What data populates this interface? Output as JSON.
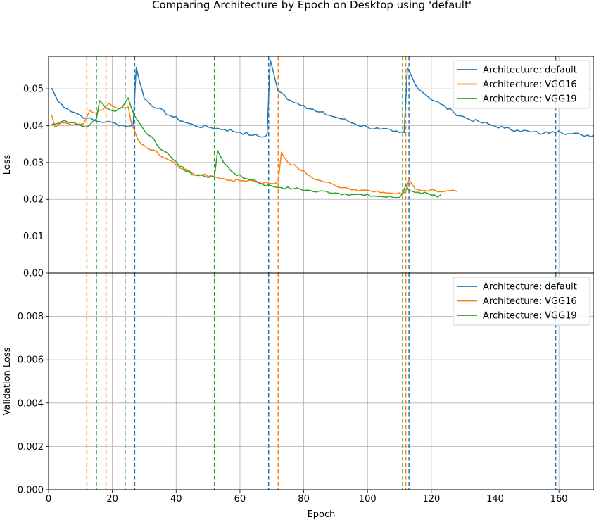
{
  "chart_data": [
    {
      "type": "line",
      "title": "Comparing Architecture by Epoch on Desktop using 'default'",
      "ylabel": "Loss",
      "xlim": [
        0,
        171
      ],
      "ylim": [
        0,
        0.0588
      ],
      "xticks": [
        0,
        20,
        40,
        60,
        80,
        100,
        120,
        140,
        160
      ],
      "yticks": [
        0.0,
        0.01,
        0.02,
        0.03,
        0.04,
        0.05
      ],
      "ytick_labels": [
        "0.00",
        "0.01",
        "0.02",
        "0.03",
        "0.04",
        "0.05"
      ],
      "grid": true,
      "legend": "top-right",
      "series": [
        {
          "name": "Architecture: default",
          "color": "#1f77b4",
          "anchors": [
            [
              1,
              0.0502
            ],
            [
              3,
              0.0465
            ],
            [
              6,
              0.0445
            ],
            [
              9,
              0.0432
            ],
            [
              12,
              0.042
            ],
            [
              15,
              0.0412
            ],
            [
              18,
              0.041
            ],
            [
              21,
              0.0406
            ],
            [
              24,
              0.0399
            ],
            [
              26.5,
              0.0399
            ],
            [
              27.5,
              0.0558
            ],
            [
              30,
              0.0473
            ],
            [
              34,
              0.0447
            ],
            [
              38,
              0.0428
            ],
            [
              42,
              0.0412
            ],
            [
              46,
              0.0399
            ],
            [
              50,
              0.0396
            ],
            [
              55,
              0.039
            ],
            [
              60,
              0.0382
            ],
            [
              64,
              0.0374
            ],
            [
              67,
              0.0369
            ],
            [
              68.5,
              0.0376
            ],
            [
              69.5,
              0.0578
            ],
            [
              72,
              0.0493
            ],
            [
              76,
              0.0468
            ],
            [
              80,
              0.0455
            ],
            [
              84,
              0.0438
            ],
            [
              88,
              0.0428
            ],
            [
              92,
              0.0418
            ],
            [
              96,
              0.0405
            ],
            [
              100,
              0.0396
            ],
            [
              104,
              0.039
            ],
            [
              108,
              0.0384
            ],
            [
              110,
              0.0381
            ],
            [
              111.5,
              0.0381
            ],
            [
              112.5,
              0.0557
            ],
            [
              115,
              0.0511
            ],
            [
              119,
              0.0478
            ],
            [
              123,
              0.0458
            ],
            [
              127,
              0.0436
            ],
            [
              131,
              0.042
            ],
            [
              135,
              0.041
            ],
            [
              139,
              0.0401
            ],
            [
              143,
              0.0393
            ],
            [
              147,
              0.0388
            ],
            [
              151,
              0.0383
            ],
            [
              155,
              0.0378
            ],
            [
              158,
              0.0384
            ],
            [
              160,
              0.0386
            ],
            [
              163,
              0.0378
            ],
            [
              167,
              0.0375
            ],
            [
              171,
              0.0374
            ]
          ],
          "noise": 0.0005
        },
        {
          "name": "Architecture: VGG16",
          "color": "#ff7f0e",
          "anchors": [
            [
              1,
              0.0428
            ],
            [
              2,
              0.0396
            ],
            [
              4,
              0.0408
            ],
            [
              6,
              0.0406
            ],
            [
              9,
              0.0404
            ],
            [
              11,
              0.0405
            ],
            [
              13,
              0.0442
            ],
            [
              15,
              0.0434
            ],
            [
              17,
              0.0443
            ],
            [
              19,
              0.046
            ],
            [
              21,
              0.0449
            ],
            [
              24,
              0.0447
            ],
            [
              25,
              0.0451
            ],
            [
              26,
              0.0405
            ],
            [
              28,
              0.0362
            ],
            [
              31,
              0.0338
            ],
            [
              33,
              0.0334
            ],
            [
              36,
              0.0313
            ],
            [
              39,
              0.0302
            ],
            [
              42,
              0.0282
            ],
            [
              45,
              0.0271
            ],
            [
              48,
              0.0265
            ],
            [
              51,
              0.0264
            ],
            [
              54,
              0.0256
            ],
            [
              57,
              0.0252
            ],
            [
              60,
              0.025
            ],
            [
              63,
              0.0252
            ],
            [
              66,
              0.0246
            ],
            [
              69,
              0.0244
            ],
            [
              71,
              0.0243
            ],
            [
              72,
              0.0248
            ],
            [
              73,
              0.0327
            ],
            [
              75,
              0.0301
            ],
            [
              78,
              0.0286
            ],
            [
              81,
              0.0268
            ],
            [
              84,
              0.0253
            ],
            [
              87,
              0.0247
            ],
            [
              90,
              0.0237
            ],
            [
              93,
              0.0232
            ],
            [
              96,
              0.0227
            ],
            [
              99,
              0.0225
            ],
            [
              102,
              0.022
            ],
            [
              105,
              0.0219
            ],
            [
              108,
              0.0216
            ],
            [
              111,
              0.0214
            ],
            [
              112,
              0.0222
            ],
            [
              113,
              0.0253
            ],
            [
              115,
              0.0228
            ],
            [
              118,
              0.0224
            ],
            [
              121,
              0.0225
            ],
            [
              124,
              0.0221
            ],
            [
              128,
              0.0221
            ]
          ],
          "noise": 0.0004
        },
        {
          "name": "Architecture: VGG19",
          "color": "#2ca02c",
          "anchors": [
            [
              1,
              0.0403
            ],
            [
              3,
              0.0406
            ],
            [
              5,
              0.0414
            ],
            [
              8,
              0.0408
            ],
            [
              11,
              0.0397
            ],
            [
              13,
              0.0402
            ],
            [
              15,
              0.0418
            ],
            [
              16,
              0.0468
            ],
            [
              18,
              0.0448
            ],
            [
              21,
              0.0439
            ],
            [
              23,
              0.0448
            ],
            [
              25,
              0.0475
            ],
            [
              27,
              0.0426
            ],
            [
              29,
              0.0401
            ],
            [
              31,
              0.0376
            ],
            [
              33,
              0.0364
            ],
            [
              35,
              0.0336
            ],
            [
              37,
              0.0327
            ],
            [
              40,
              0.0302
            ],
            [
              43,
              0.0276
            ],
            [
              46,
              0.0266
            ],
            [
              49,
              0.0262
            ],
            [
              52,
              0.0262
            ],
            [
              53,
              0.0332
            ],
            [
              55,
              0.0298
            ],
            [
              58,
              0.0272
            ],
            [
              61,
              0.0258
            ],
            [
              64,
              0.0254
            ],
            [
              67,
              0.0241
            ],
            [
              70,
              0.0236
            ],
            [
              73,
              0.0232
            ],
            [
              77,
              0.0229
            ],
            [
              81,
              0.0225
            ],
            [
              84,
              0.022
            ],
            [
              87,
              0.0222
            ],
            [
              90,
              0.0217
            ],
            [
              93,
              0.0215
            ],
            [
              96,
              0.0213
            ],
            [
              99,
              0.0211
            ],
            [
              102,
              0.0209
            ],
            [
              105,
              0.0207
            ],
            [
              108,
              0.0205
            ],
            [
              110,
              0.0205
            ],
            [
              111,
              0.0215
            ],
            [
              112,
              0.0239
            ],
            [
              113,
              0.0224
            ],
            [
              116,
              0.0219
            ],
            [
              119,
              0.0216
            ],
            [
              121,
              0.0212
            ],
            [
              122,
              0.0206
            ],
            [
              123,
              0.0213
            ]
          ],
          "noise": 0.0004
        }
      ],
      "vlines": [
        {
          "x": 12,
          "color": "#ff7f0e"
        },
        {
          "x": 15,
          "color": "#2ca02c"
        },
        {
          "x": 18,
          "color": "#ff7f0e"
        },
        {
          "x": 24,
          "color": "#2ca02c"
        },
        {
          "x": 27,
          "color": "#1f77b4"
        },
        {
          "x": 52,
          "color": "#2ca02c"
        },
        {
          "x": 69,
          "color": "#1f77b4"
        },
        {
          "x": 72,
          "color": "#ff7f0e"
        },
        {
          "x": 111,
          "color": "#2ca02c"
        },
        {
          "x": 112,
          "color": "#ff7f0e"
        },
        {
          "x": 113,
          "color": "#1f77b4"
        },
        {
          "x": 159,
          "color": "#1f77b4"
        }
      ]
    },
    {
      "type": "line",
      "ylabel": "Validation Loss",
      "xlabel": "Epoch",
      "xlim": [
        0,
        171
      ],
      "ylim": [
        0,
        0.01
      ],
      "xticks": [
        0,
        20,
        40,
        60,
        80,
        100,
        120,
        140,
        160
      ],
      "yticks": [
        0.0,
        0.002,
        0.004,
        0.006,
        0.008
      ],
      "ytick_labels": [
        "0.000",
        "0.002",
        "0.004",
        "0.006",
        "0.008"
      ],
      "grid": true,
      "legend": "top-right",
      "series": [
        {
          "name": "Architecture: default",
          "color": "#1f77b4",
          "values": []
        },
        {
          "name": "Architecture: VGG16",
          "color": "#ff7f0e",
          "values": []
        },
        {
          "name": "Architecture: VGG19",
          "color": "#2ca02c",
          "values": []
        }
      ],
      "vlines": [
        {
          "x": 12,
          "color": "#ff7f0e"
        },
        {
          "x": 15,
          "color": "#2ca02c"
        },
        {
          "x": 18,
          "color": "#ff7f0e"
        },
        {
          "x": 24,
          "color": "#2ca02c"
        },
        {
          "x": 27,
          "color": "#1f77b4"
        },
        {
          "x": 52,
          "color": "#2ca02c"
        },
        {
          "x": 69,
          "color": "#1f77b4"
        },
        {
          "x": 72,
          "color": "#ff7f0e"
        },
        {
          "x": 111,
          "color": "#2ca02c"
        },
        {
          "x": 112,
          "color": "#ff7f0e"
        },
        {
          "x": 113,
          "color": "#1f77b4"
        },
        {
          "x": 159,
          "color": "#1f77b4"
        }
      ]
    }
  ]
}
